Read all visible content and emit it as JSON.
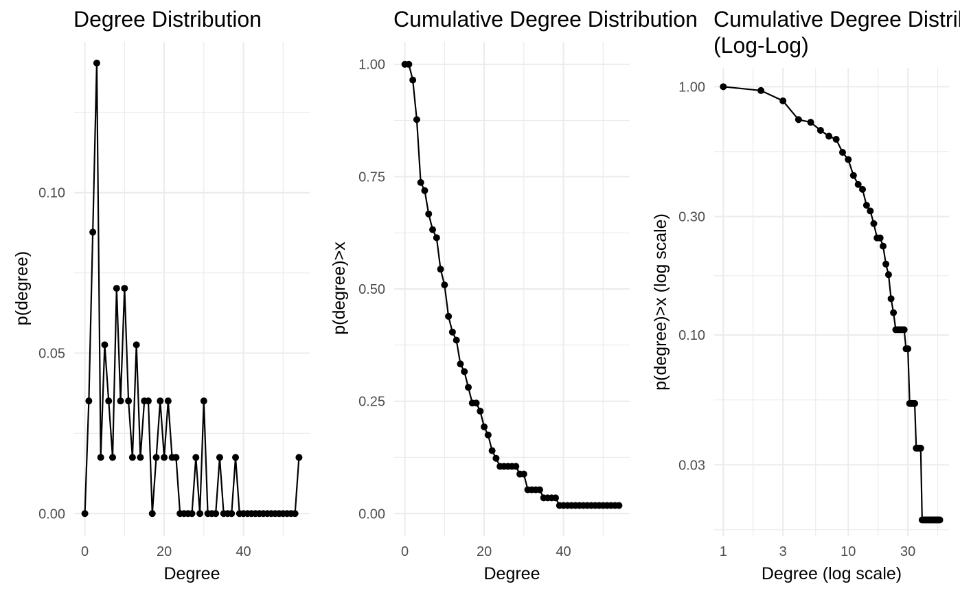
{
  "chart_data": [
    {
      "type": "line",
      "title": "Degree Distribution",
      "xlabel": "Degree",
      "ylabel": "p(degree)",
      "xscale": "linear",
      "yscale": "linear",
      "xlim": [
        -2.7,
        56.7
      ],
      "ylim": [
        -0.007,
        0.147
      ],
      "xticks": [
        0,
        20,
        40
      ],
      "xtick_labels": [
        "0",
        "20",
        "40"
      ],
      "yticks": [
        0.0,
        0.05,
        0.1
      ],
      "ytick_labels": [
        "0.00",
        "0.05",
        "0.10"
      ],
      "grid": true,
      "x": [
        0,
        1,
        2,
        3,
        4,
        5,
        6,
        7,
        8,
        9,
        10,
        11,
        12,
        13,
        14,
        15,
        16,
        17,
        18,
        19,
        20,
        21,
        22,
        23,
        24,
        25,
        26,
        27,
        28,
        29,
        30,
        31,
        32,
        33,
        34,
        35,
        36,
        37,
        38,
        39,
        40,
        41,
        42,
        43,
        44,
        45,
        46,
        47,
        48,
        49,
        50,
        51,
        52,
        53,
        54
      ],
      "y": [
        0,
        0.0351,
        0.0877,
        0.1404,
        0.0175,
        0.0526,
        0.0351,
        0.0175,
        0.0702,
        0.0351,
        0.0702,
        0.0351,
        0.0175,
        0.0526,
        0.0175,
        0.0351,
        0.0351,
        0,
        0.0175,
        0.0351,
        0.0175,
        0.0351,
        0.0175,
        0.0175,
        0,
        0,
        0,
        0,
        0.0175,
        0,
        0.0351,
        0,
        0,
        0,
        0.0175,
        0,
        0,
        0,
        0.0175,
        0,
        0,
        0,
        0,
        0,
        0,
        0,
        0,
        0,
        0,
        0,
        0,
        0,
        0,
        0,
        0.0175
      ]
    },
    {
      "type": "line",
      "title": "Cumulative Degree Distribution",
      "xlabel": "Degree",
      "ylabel": "p(degree)>x",
      "xscale": "linear",
      "yscale": "linear",
      "xlim": [
        -2.7,
        56.7
      ],
      "ylim": [
        -0.05,
        1.05
      ],
      "xticks": [
        0,
        20,
        40
      ],
      "xtick_labels": [
        "0",
        "20",
        "40"
      ],
      "yticks": [
        0,
        0.25,
        0.5,
        0.75,
        1.0
      ],
      "ytick_labels": [
        "0.00",
        "0.25",
        "0.50",
        "0.75",
        "1.00"
      ],
      "grid": true,
      "x": [
        0,
        1,
        2,
        3,
        4,
        5,
        6,
        7,
        8,
        9,
        10,
        11,
        12,
        13,
        14,
        15,
        16,
        17,
        18,
        19,
        20,
        21,
        22,
        23,
        24,
        25,
        26,
        27,
        28,
        29,
        30,
        31,
        32,
        33,
        34,
        35,
        36,
        37,
        38,
        39,
        40,
        41,
        42,
        43,
        44,
        45,
        46,
        47,
        48,
        49,
        50,
        51,
        52,
        53,
        54
      ],
      "y": [
        1,
        1,
        0.965,
        0.877,
        0.737,
        0.719,
        0.667,
        0.632,
        0.614,
        0.544,
        0.509,
        0.439,
        0.404,
        0.386,
        0.333,
        0.316,
        0.281,
        0.246,
        0.246,
        0.228,
        0.193,
        0.175,
        0.14,
        0.123,
        0.105,
        0.105,
        0.105,
        0.105,
        0.105,
        0.088,
        0.088,
        0.053,
        0.053,
        0.053,
        0.053,
        0.035,
        0.035,
        0.035,
        0.035,
        0.018,
        0.018,
        0.018,
        0.018,
        0.018,
        0.018,
        0.018,
        0.018,
        0.018,
        0.018,
        0.018,
        0.018,
        0.018,
        0.018,
        0.018,
        0.018
      ]
    },
    {
      "type": "line",
      "title": "Cumulative Degree Distribution\n(Log-Log)",
      "xlabel": "Degree (log scale)",
      "ylabel": "p(degree)>x (log scale)",
      "xscale": "log",
      "yscale": "log",
      "xlim": [
        0.845,
        64.0
      ],
      "ylim": [
        0.0155,
        1.19
      ],
      "xticks": [
        1,
        3,
        10,
        30
      ],
      "xtick_labels": [
        "1",
        "3",
        "10",
        "30"
      ],
      "yticks": [
        0.03,
        0.1,
        0.3,
        1.0
      ],
      "ytick_labels": [
        "0.03",
        "0.10",
        "0.30",
        "1.00"
      ],
      "grid": true,
      "x": [
        1,
        2,
        3,
        4,
        5,
        6,
        7,
        8,
        9,
        10,
        11,
        12,
        13,
        14,
        15,
        16,
        17,
        18,
        19,
        20,
        21,
        22,
        23,
        24,
        25,
        26,
        27,
        28,
        29,
        30,
        31,
        32,
        33,
        34,
        35,
        36,
        37,
        38,
        39,
        40,
        41,
        42,
        43,
        44,
        45,
        46,
        47,
        48,
        49,
        50,
        51,
        52,
        53,
        54
      ],
      "y": [
        1,
        0.965,
        0.877,
        0.737,
        0.719,
        0.667,
        0.632,
        0.614,
        0.544,
        0.509,
        0.439,
        0.404,
        0.386,
        0.333,
        0.316,
        0.281,
        0.246,
        0.246,
        0.228,
        0.193,
        0.175,
        0.14,
        0.123,
        0.105,
        0.105,
        0.105,
        0.105,
        0.105,
        0.088,
        0.088,
        0.053,
        0.053,
        0.053,
        0.053,
        0.035,
        0.035,
        0.035,
        0.035,
        0.018,
        0.018,
        0.018,
        0.018,
        0.018,
        0.018,
        0.018,
        0.018,
        0.018,
        0.018,
        0.018,
        0.018,
        0.018,
        0.018,
        0.018,
        0.018
      ]
    }
  ]
}
